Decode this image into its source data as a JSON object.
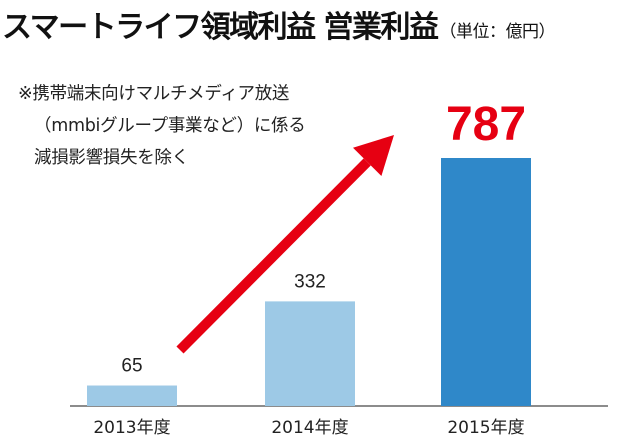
{
  "title": {
    "main": "スマートライフ領域利益 営業利益",
    "unit": "（単位：億円）"
  },
  "note": {
    "line1": "※携帯端末向けマルチメディア放送",
    "line2": "（mmbiグループ事業など）に係る",
    "line3": "減損影響損失を除く"
  },
  "colors": {
    "bar_past": "#9dc9e6",
    "bar_current": "#2f88c9",
    "highlight": "#e60012",
    "arrow": "#e60012"
  },
  "chart_data": {
    "type": "bar",
    "categories": [
      "2013年度",
      "2014年度",
      "2015年度"
    ],
    "values": [
      65,
      332,
      787
    ],
    "value_labels": [
      "65",
      "332",
      "787"
    ],
    "highlight_index": 2,
    "ylabel": "",
    "ylim": [
      0,
      800
    ],
    "grid": false,
    "annotation": "trend-arrow"
  }
}
